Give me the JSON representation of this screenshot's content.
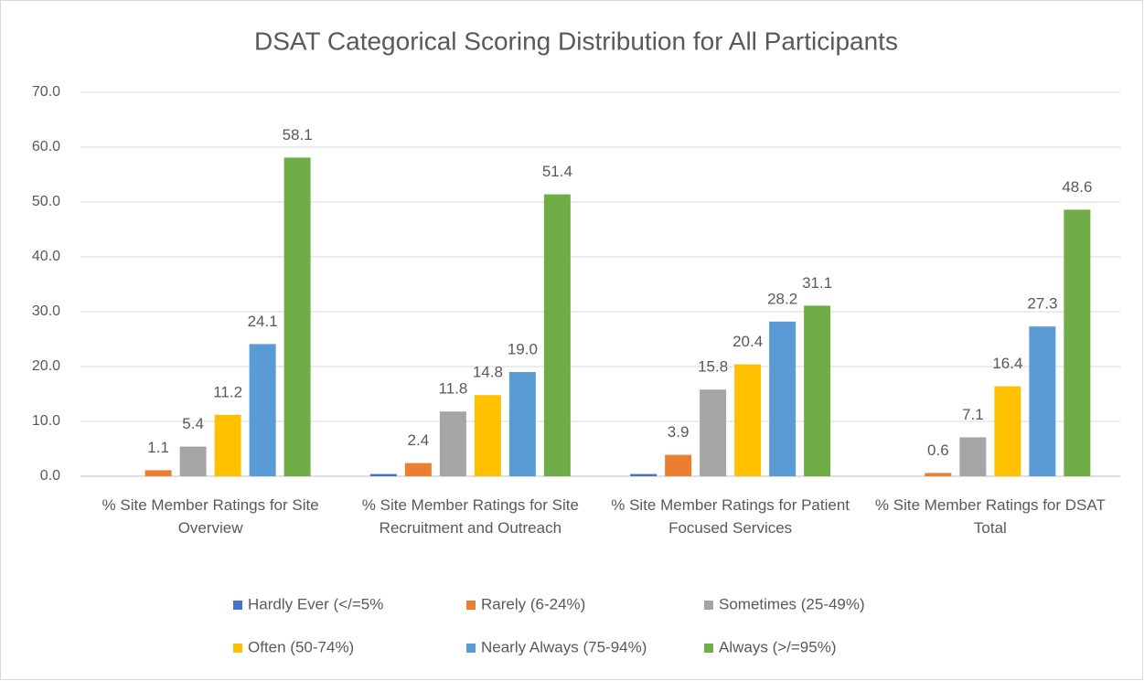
{
  "chart_data": {
    "type": "bar",
    "title": "DSAT Categorical Scoring Distribution for All Participants",
    "categories": [
      "% Site Member Ratings for Site Overview",
      "% Site Member Ratings for Site Recruitment and Outreach",
      "% Site Member Ratings for Patient Focused Services",
      "% Site Member Ratings for DSAT Total"
    ],
    "series": [
      {
        "name": "Hardly Ever (</=5%",
        "color": "#4472c4",
        "values": [
          0,
          0.4,
          0.4,
          0
        ],
        "data_labels": false
      },
      {
        "name": "Rarely (6-24%)",
        "color": "#ed7d31",
        "values": [
          1.1,
          2.4,
          3.9,
          0.6
        ],
        "value_labels": [
          "1.1",
          "2.4",
          "3.9",
          "0.6"
        ],
        "data_labels": true
      },
      {
        "name": "Sometimes (25-49%)",
        "color": "#a5a5a5",
        "values": [
          5.4,
          11.8,
          15.8,
          7.1
        ],
        "value_labels": [
          "5.4",
          "11.8",
          "15.8",
          "7.1"
        ],
        "data_labels": true
      },
      {
        "name": "Often (50-74%)",
        "color": "#ffc000",
        "values": [
          11.2,
          14.8,
          20.4,
          16.4
        ],
        "value_labels": [
          "11.2",
          "14.8",
          "20.4",
          "16.4"
        ],
        "data_labels": true
      },
      {
        "name": "Nearly Always (75-94%)",
        "color": "#5b9bd5",
        "values": [
          24.1,
          19.0,
          28.2,
          27.3
        ],
        "value_labels": [
          "24.1",
          "19.0",
          "28.2",
          "27.3"
        ],
        "data_labels": true
      },
      {
        "name": "Always (>/=95%)",
        "color": "#70ad47",
        "values": [
          58.1,
          51.4,
          31.1,
          48.6
        ],
        "value_labels": [
          "58.1",
          "51.4",
          "31.1",
          "48.6"
        ],
        "data_labels": true
      }
    ],
    "ylim": [
      0,
      70
    ],
    "yticks": [
      {
        "value": 0,
        "label": "0.0"
      },
      {
        "value": 10,
        "label": "10.0"
      },
      {
        "value": 20,
        "label": "20.0"
      },
      {
        "value": 30,
        "label": "30.0"
      },
      {
        "value": 40,
        "label": "40.0"
      },
      {
        "value": 50,
        "label": "50.0"
      },
      {
        "value": 60,
        "label": "60.0"
      },
      {
        "value": 70,
        "label": "70.0"
      }
    ],
    "grid": true,
    "legend": "bottom"
  }
}
